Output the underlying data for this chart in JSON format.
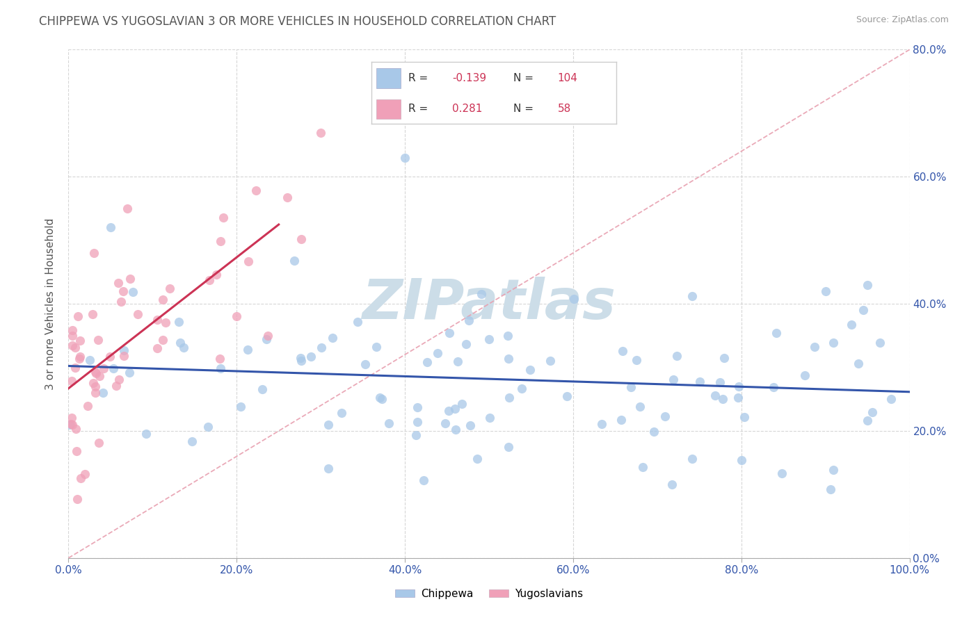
{
  "title": "CHIPPEWA VS YUGOSLAVIAN 3 OR MORE VEHICLES IN HOUSEHOLD CORRELATION CHART",
  "source": "Source: ZipAtlas.com",
  "ylabel": "3 or more Vehicles in Household",
  "chippewa_R": -0.139,
  "chippewa_N": 104,
  "yugoslav_R": 0.281,
  "yugoslav_N": 58,
  "chippewa_color": "#a8c8e8",
  "yugoslav_color": "#f0a0b8",
  "chippewa_line_color": "#3355aa",
  "yugoslav_line_color": "#cc3355",
  "diagonal_line_color": "#e8a0b0",
  "watermark": "ZIPatlas",
  "watermark_color": "#ccdde8",
  "background_color": "#ffffff",
  "grid_color": "#cccccc",
  "title_color": "#555555",
  "source_color": "#999999",
  "tick_color": "#3355aa",
  "legend_r_color": "#cc3355",
  "legend_n_color": "#cc3355",
  "legend_label_color": "#333333",
  "xlim": [
    0,
    100
  ],
  "ylim": [
    0,
    80
  ],
  "xticks": [
    0,
    20,
    40,
    60,
    80,
    100
  ],
  "yticks": [
    0,
    20,
    40,
    60,
    80
  ]
}
